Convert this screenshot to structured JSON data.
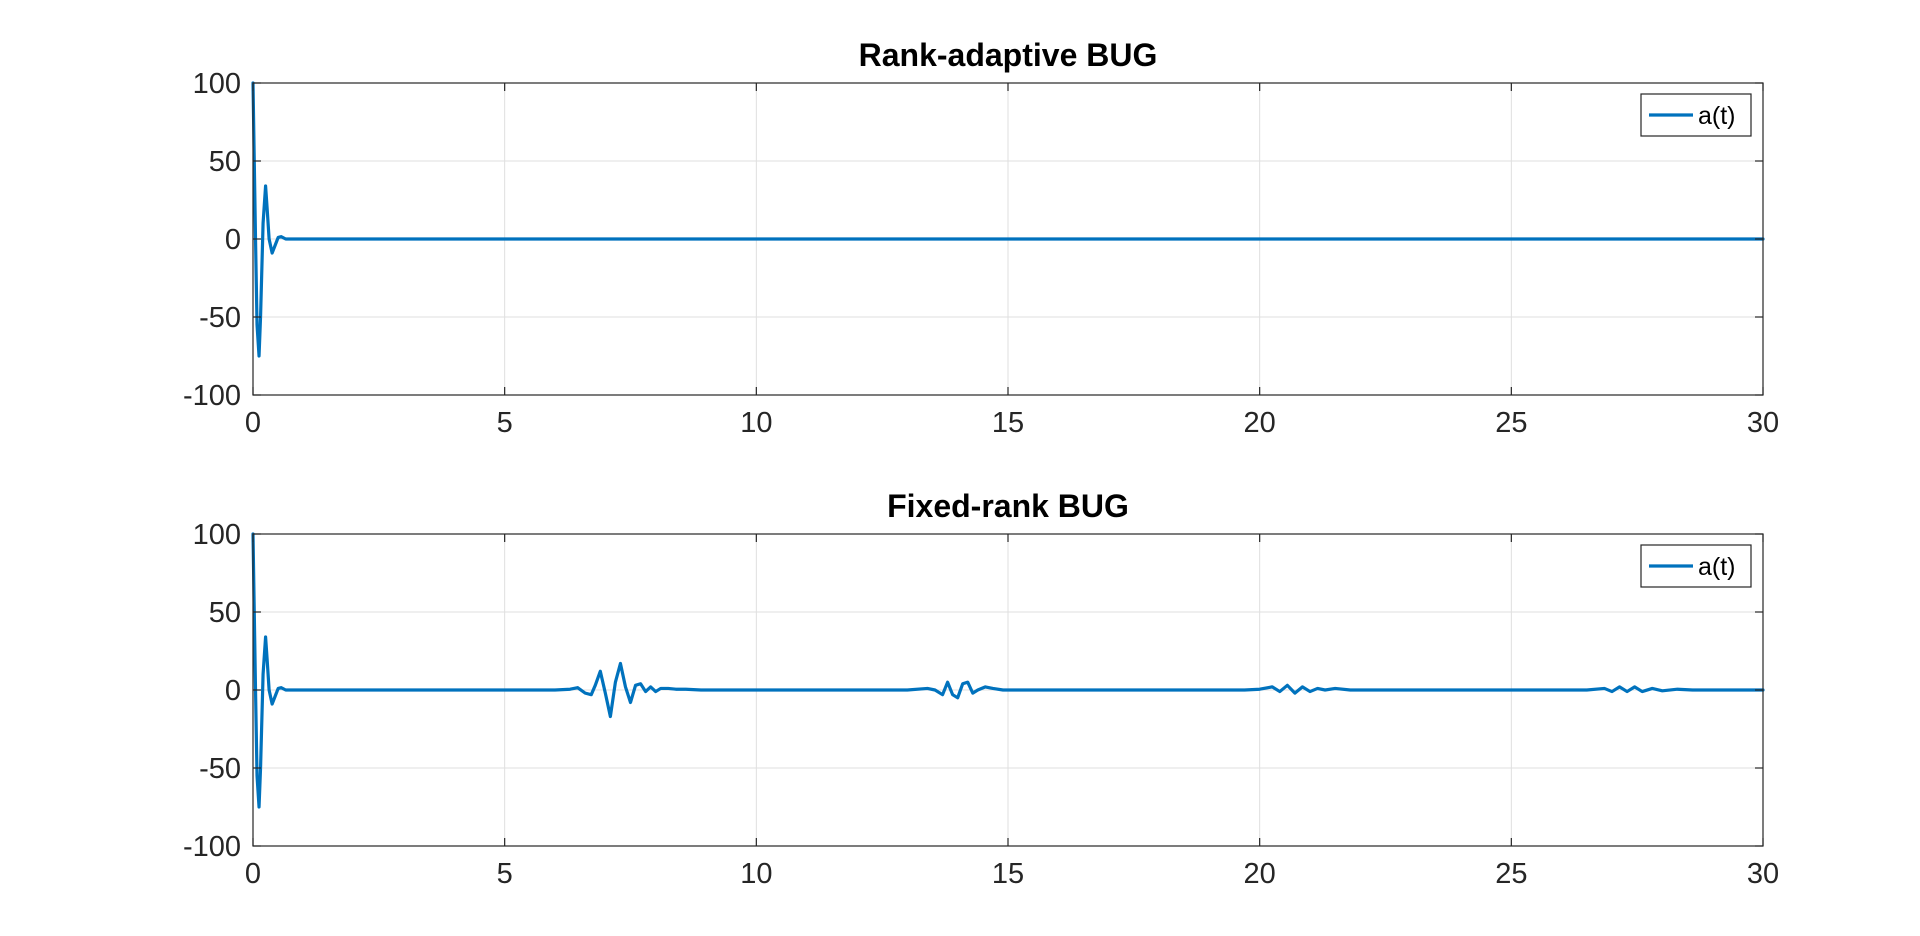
{
  "figure": {
    "background": "#ffffff"
  },
  "style": {
    "line_color": "#0072BD",
    "grid_color": "#DFDFDF",
    "axis_color": "#262626"
  },
  "chart_data": [
    {
      "type": "line",
      "title": "Rank-adaptive BUG",
      "xlabel": "",
      "ylabel": "",
      "xlim": [
        0,
        30
      ],
      "ylim": [
        -100,
        100
      ],
      "xticks": [
        0,
        5,
        10,
        15,
        20,
        25,
        30
      ],
      "yticks": [
        -100,
        -50,
        0,
        50,
        100
      ],
      "xtick_labels": [
        "0",
        "5",
        "10",
        "15",
        "20",
        "25",
        "30"
      ],
      "ytick_labels": [
        "-100",
        "-50",
        "0",
        "50",
        "100"
      ],
      "grid": true,
      "legend_position": "top-right",
      "series": [
        {
          "name": "a(t)",
          "x": [
            0,
            0.02,
            0.05,
            0.08,
            0.12,
            0.15,
            0.2,
            0.25,
            0.28,
            0.32,
            0.38,
            0.44,
            0.5,
            0.56,
            0.65,
            0.75,
            0.9,
            30
          ],
          "y": [
            100,
            60,
            0,
            -55,
            -75,
            -50,
            10,
            34,
            20,
            0,
            -9,
            -4,
            1,
            1.5,
            0,
            0,
            0,
            0
          ]
        }
      ]
    },
    {
      "type": "line",
      "title": "Fixed-rank BUG",
      "xlabel": "",
      "ylabel": "",
      "xlim": [
        0,
        30
      ],
      "ylim": [
        -100,
        100
      ],
      "xticks": [
        0,
        5,
        10,
        15,
        20,
        25,
        30
      ],
      "yticks": [
        -100,
        -50,
        0,
        50,
        100
      ],
      "xtick_labels": [
        "0",
        "5",
        "10",
        "15",
        "20",
        "25",
        "30"
      ],
      "ytick_labels": [
        "-100",
        "-50",
        "0",
        "50",
        "100"
      ],
      "grid": true,
      "legend_position": "top-right",
      "series": [
        {
          "name": "a(t)",
          "x": [
            0,
            0.02,
            0.05,
            0.08,
            0.12,
            0.15,
            0.2,
            0.25,
            0.28,
            0.32,
            0.38,
            0.44,
            0.5,
            0.56,
            0.65,
            0.75,
            0.9,
            6.0,
            6.3,
            6.45,
            6.6,
            6.72,
            6.8,
            6.9,
            7.0,
            7.1,
            7.2,
            7.3,
            7.4,
            7.5,
            7.6,
            7.7,
            7.8,
            7.9,
            8.0,
            8.1,
            8.25,
            8.4,
            8.6,
            8.9,
            13.0,
            13.4,
            13.55,
            13.7,
            13.8,
            13.9,
            14.0,
            14.1,
            14.2,
            14.3,
            14.4,
            14.55,
            14.7,
            14.9,
            19.7,
            20.0,
            20.25,
            20.4,
            20.55,
            20.7,
            20.85,
            21.0,
            21.15,
            21.3,
            21.5,
            21.8,
            26.5,
            26.85,
            27.0,
            27.15,
            27.3,
            27.45,
            27.6,
            27.8,
            28.0,
            28.3,
            28.6,
            30
          ],
          "y": [
            100,
            60,
            0,
            -55,
            -75,
            -50,
            10,
            34,
            20,
            0,
            -9,
            -4,
            1,
            1.5,
            0,
            0,
            0,
            0,
            0.5,
            1.5,
            -2,
            -3,
            3,
            12,
            -2,
            -17,
            5,
            17,
            2,
            -8,
            3,
            4,
            -1,
            2,
            -1,
            1,
            1,
            0.5,
            0.5,
            0,
            0,
            1,
            0,
            -3,
            5,
            -3,
            -5,
            4,
            5,
            -2,
            0,
            2,
            1,
            0,
            0,
            0.5,
            2,
            -1,
            3,
            -2,
            2,
            -1,
            1,
            0,
            1,
            0,
            0,
            1,
            -1,
            2,
            -1,
            2,
            -1,
            1,
            -0.5,
            0.5,
            0,
            0
          ]
        }
      ]
    }
  ]
}
